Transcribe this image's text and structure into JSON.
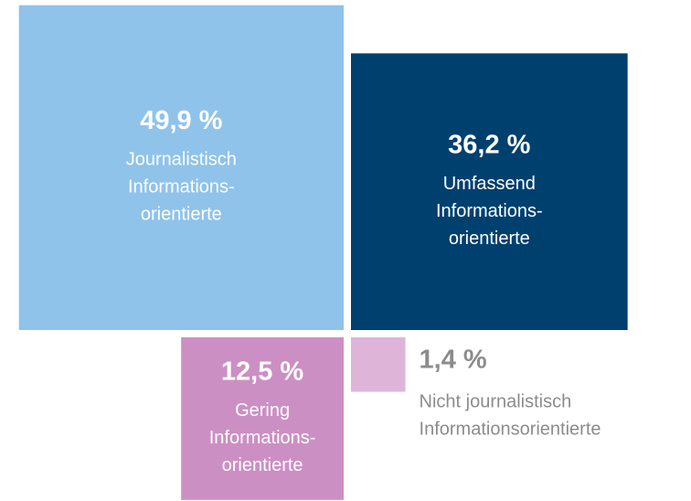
{
  "chart_data": {
    "type": "square",
    "categories": [
      [
        "Journalistisch",
        "Informations-",
        "orientierte"
      ],
      [
        "Umfassend",
        "Informations-",
        "orientierte"
      ],
      [
        "Gering",
        "Informations-",
        "orientierte"
      ],
      [
        "Nicht journalistisch",
        "Informationsorientierte"
      ]
    ],
    "values": [
      49.9,
      36.2,
      12.5,
      1.4
    ],
    "value_labels": [
      "49,9 %",
      "36,2 %",
      "12,5 %",
      "1,4 %"
    ],
    "colors": [
      "#8fc3ea",
      "#00406f",
      "#cc8fc4",
      "#deb5d9"
    ]
  }
}
